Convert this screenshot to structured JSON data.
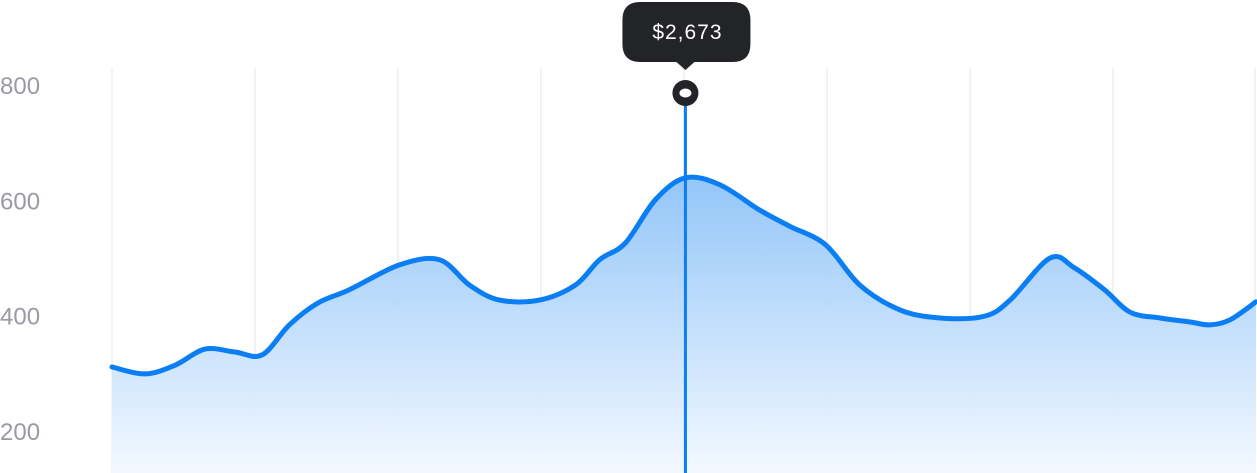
{
  "chart_data": {
    "type": "area",
    "title": "",
    "xlabel": "",
    "ylabel": "",
    "ylim": [
      150,
      800
    ],
    "yticks": [
      "800",
      "600",
      "400",
      "200"
    ],
    "ytick_values": [
      800,
      600,
      400,
      200
    ],
    "grid": {
      "vertical": true,
      "horizontal": false
    },
    "line_color": "#0a7ef2",
    "fill_color_top": "#8ec3f8",
    "fill_color_bottom": "#f2f8ff",
    "series": [
      {
        "x": [
          0,
          0.23,
          0.44,
          0.65,
          0.86,
          1.05,
          1.24,
          1.44,
          1.66,
          2.01,
          2.29,
          2.5,
          2.71,
          2.99,
          3.24,
          3.41,
          3.59,
          3.8,
          4.01,
          4.25,
          4.53,
          4.74,
          4.99,
          5.23,
          5.51,
          5.79,
          6.1,
          6.28,
          6.56,
          6.73,
          6.94,
          7.12,
          7.33,
          7.54,
          7.68,
          7.82,
          8.0
        ],
        "values": [
          311,
          299,
          314,
          342,
          337,
          332,
          384,
          422,
          445,
          488,
          497,
          453,
          427,
          427,
          453,
          497,
          526,
          601,
          639,
          627,
          583,
          555,
          523,
          453,
          410,
          396,
          399,
          427,
          500,
          483,
          445,
          406,
          396,
          389,
          384,
          393,
          424
        ]
      }
    ],
    "cursor": {
      "x": 4.01,
      "label": "$2,673"
    }
  }
}
